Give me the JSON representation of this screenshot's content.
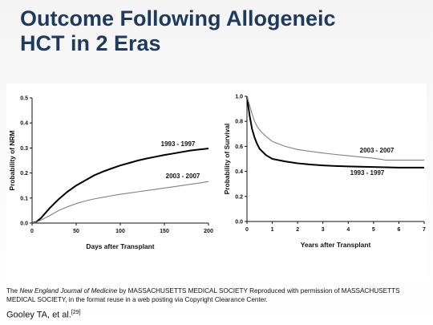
{
  "slide": {
    "title_line1": "Outcome Following Allogeneic",
    "title_line2": "HCT in 2 Eras",
    "credit_journal": "New England Journal of Medicine",
    "credit_pre": "The ",
    "credit_rest": " by MASSACHUSETTS MEDICAL SOCIETY Reproduced with permission of MASSACHUSETTS MEDICAL SOCIETY, in the format reuse in a web posting via Copyright Clearance Center.",
    "reference": "Gooley TA, et al.",
    "reference_sup": "[29]",
    "colors": {
      "title": "#1f3a5a",
      "dark_series": "#000000",
      "light_series": "#808080"
    }
  },
  "chart_data": [
    {
      "type": "line",
      "xlabel": "Days after Transplant",
      "ylabel": "Probability of NRM",
      "xlim": [
        0,
        200
      ],
      "ylim": [
        0,
        0.5
      ],
      "xticks": [
        0,
        50,
        100,
        150,
        200
      ],
      "yticks": [
        0.0,
        0.1,
        0.2,
        0.3,
        0.4,
        0.5
      ],
      "ytick_labels": [
        "0.0",
        "0.1",
        "0.2",
        "0.3",
        "0.4",
        "0.5"
      ],
      "series": [
        {
          "name": "1993 - 1997",
          "color": "#000000",
          "x": [
            0,
            5,
            10,
            20,
            30,
            40,
            50,
            60,
            70,
            80,
            90,
            100,
            110,
            120,
            130,
            140,
            150,
            160,
            170,
            180,
            190,
            200
          ],
          "y": [
            0,
            0.005,
            0.02,
            0.06,
            0.095,
            0.125,
            0.15,
            0.17,
            0.19,
            0.205,
            0.218,
            0.23,
            0.24,
            0.25,
            0.258,
            0.265,
            0.272,
            0.278,
            0.284,
            0.29,
            0.294,
            0.298
          ]
        },
        {
          "name": "2003 - 2007",
          "color": "#808080",
          "x": [
            0,
            5,
            10,
            20,
            30,
            40,
            50,
            60,
            70,
            80,
            90,
            100,
            110,
            120,
            130,
            140,
            150,
            160,
            170,
            180,
            190,
            200
          ],
          "y": [
            0,
            0.004,
            0.012,
            0.03,
            0.05,
            0.065,
            0.078,
            0.088,
            0.096,
            0.103,
            0.109,
            0.115,
            0.12,
            0.125,
            0.13,
            0.135,
            0.14,
            0.145,
            0.15,
            0.155,
            0.16,
            0.166
          ]
        }
      ]
    },
    {
      "type": "line",
      "xlabel": "Years after Transplant",
      "ylabel": "Probability of Survival",
      "xlim": [
        0,
        7
      ],
      "ylim": [
        0,
        1
      ],
      "xticks": [
        0,
        1,
        2,
        3,
        4,
        5,
        6,
        7
      ],
      "yticks": [
        0.0,
        0.2,
        0.4,
        0.6,
        0.8,
        1.0
      ],
      "ytick_labels": [
        "0.0",
        "0.2",
        "0.4",
        "0.6",
        "0.8",
        "1.0"
      ],
      "series": [
        {
          "name": "1993 - 1997",
          "color": "#000000",
          "x": [
            0,
            0.1,
            0.2,
            0.3,
            0.4,
            0.5,
            0.75,
            1,
            1.5,
            2,
            2.5,
            3,
            3.5,
            4,
            4.5,
            5,
            5.5,
            6,
            6.5,
            7
          ],
          "y": [
            1.0,
            0.85,
            0.74,
            0.67,
            0.62,
            0.58,
            0.53,
            0.5,
            0.48,
            0.465,
            0.455,
            0.448,
            0.443,
            0.44,
            0.437,
            0.435,
            0.433,
            0.43,
            0.43,
            0.43
          ]
        },
        {
          "name": "2003 - 2007",
          "color": "#808080",
          "x": [
            0,
            0.1,
            0.2,
            0.3,
            0.4,
            0.5,
            0.75,
            1,
            1.5,
            2,
            2.5,
            3,
            3.5,
            4,
            4.5,
            5,
            5.5,
            6,
            6.5,
            7
          ],
          "y": [
            1.0,
            0.93,
            0.86,
            0.8,
            0.76,
            0.73,
            0.68,
            0.64,
            0.6,
            0.575,
            0.56,
            0.547,
            0.535,
            0.525,
            0.515,
            0.505,
            0.49,
            0.49,
            0.49,
            0.49
          ]
        }
      ]
    }
  ]
}
